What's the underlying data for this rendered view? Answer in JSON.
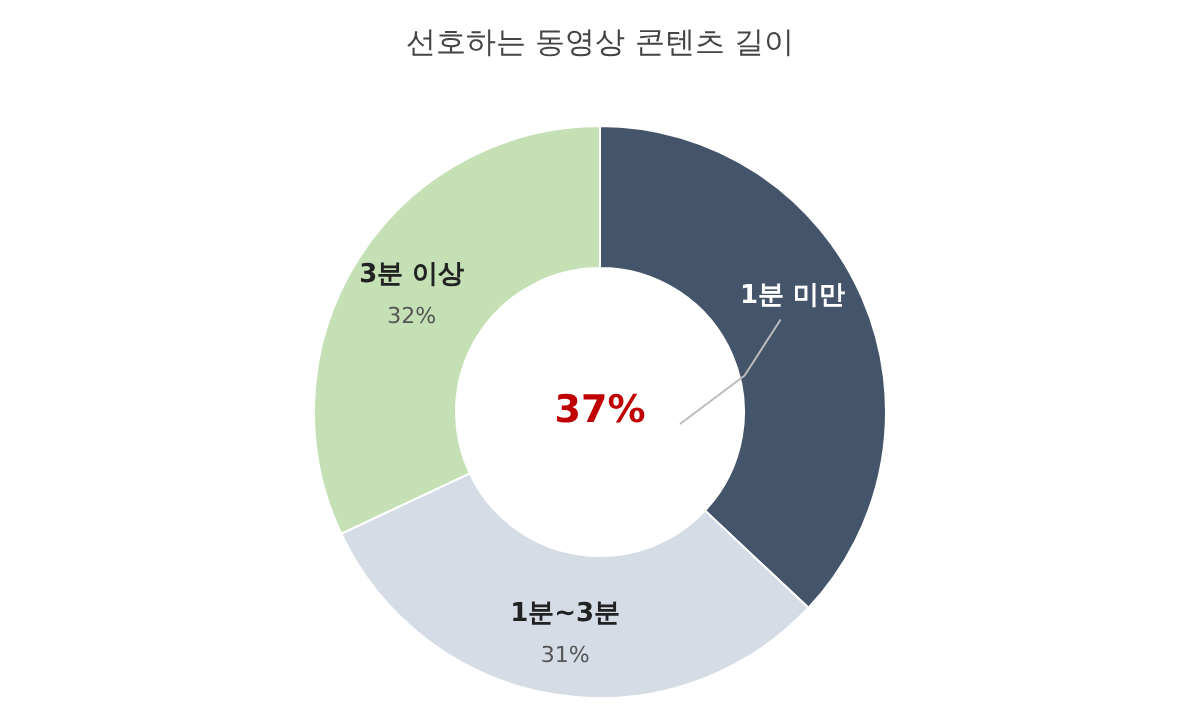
{
  "chart_data": {
    "type": "donut",
    "title": "선호하는 동영상 콘텐츠 길이",
    "categories": [
      "1분 미만",
      "1분~3분",
      "3분 이상"
    ],
    "values": [
      37,
      31,
      32
    ],
    "colors": [
      "#44546a",
      "#d6dce5",
      "#c5e0b4"
    ],
    "value_labels": [
      "37%",
      "31%",
      "32%"
    ],
    "legend": false
  }
}
